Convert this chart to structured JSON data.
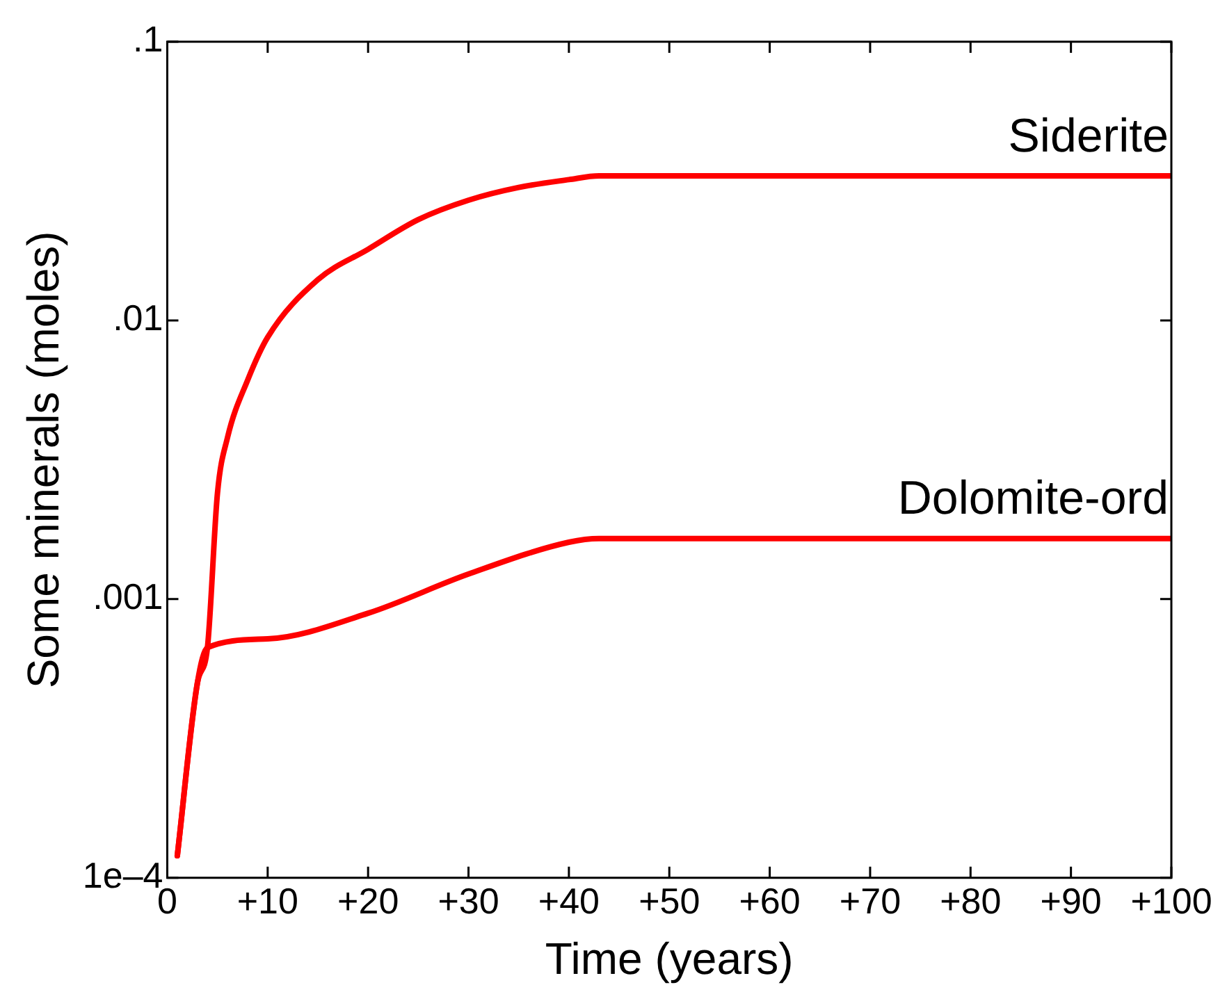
{
  "chart_data": {
    "type": "line",
    "xlabel": "Time (years)",
    "ylabel": "Some minerals (moles)",
    "log": "y",
    "grid": false,
    "legend": false,
    "marker": "none",
    "line_style": "solid",
    "xlim": [
      0,
      100
    ],
    "ylim": [
      0.0001,
      0.1
    ],
    "xticks": [
      0,
      {
        "value": 10,
        "label": "+10"
      },
      {
        "value": 20,
        "label": "+20"
      },
      {
        "value": 30,
        "label": "+30"
      },
      {
        "value": 40,
        "label": "+40"
      },
      {
        "value": 50,
        "label": "+50"
      },
      {
        "value": 60,
        "label": "+60"
      },
      {
        "value": 70,
        "label": "+70"
      },
      {
        "value": 80,
        "label": "+80"
      },
      {
        "value": 90,
        "label": "+90"
      },
      {
        "value": 100,
        "label": "+100"
      }
    ],
    "yticks": [
      {
        "value": 0.0001,
        "label": "1e–4"
      },
      {
        "value": 0.001,
        "label": ".001"
      },
      {
        "value": 0.01,
        "label": ".01"
      },
      {
        "value": 0.1,
        "label": ".1"
      }
    ],
    "series": [
      {
        "name": "Siderite",
        "color": "#ff0000",
        "x": [
          1,
          3,
          4,
          5,
          6,
          8,
          10,
          15,
          20,
          25,
          30,
          35,
          40,
          43,
          100
        ],
        "values": [
          0.00012,
          0.0005,
          0.00067,
          0.0024,
          0.0038,
          0.0061,
          0.0087,
          0.014,
          0.018,
          0.023,
          0.027,
          0.03,
          0.032,
          0.033,
          0.033
        ]
      },
      {
        "name": "Dolomite-ord",
        "color": "#ff0000",
        "x": [
          1,
          3,
          4,
          10,
          20,
          30,
          40,
          43,
          100
        ],
        "values": [
          0.00012,
          0.0005,
          0.00067,
          0.00072,
          0.00089,
          0.00123,
          0.0016,
          0.00165,
          0.00165
        ]
      }
    ]
  }
}
